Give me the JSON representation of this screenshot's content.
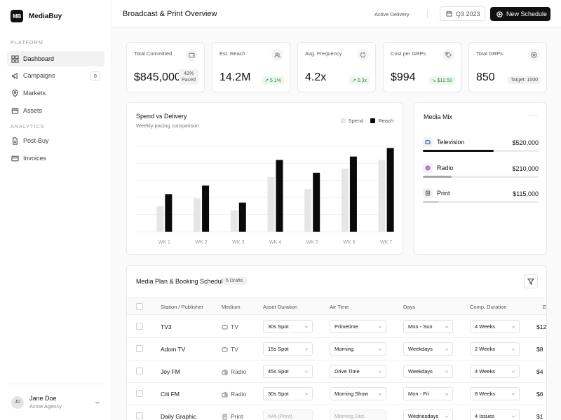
{
  "brand": {
    "logo": "MB",
    "name": "MediaBuy"
  },
  "sidebar": {
    "section_platform": "PLATFORM",
    "section_analytics": "ANALYTICS",
    "items": [
      {
        "label": "Dashboard",
        "icon": "grid-icon",
        "active": true
      },
      {
        "label": "Campaigns",
        "icon": "megaphone-icon",
        "badge": "8"
      },
      {
        "label": "Markets",
        "icon": "map-pin-icon"
      },
      {
        "label": "Assets",
        "icon": "film-icon"
      },
      {
        "label": "Post-Buy",
        "icon": "document-icon"
      },
      {
        "label": "Invoices",
        "icon": "credit-card-icon"
      }
    ],
    "user": {
      "initials": "JD",
      "name": "Jane Doe",
      "org": "Acme Agency"
    }
  },
  "header": {
    "title": "Broadcast & Print Overview",
    "status": "Active Delivery",
    "period": "Q3 2023",
    "new_button": "New Schedule"
  },
  "kpis": [
    {
      "label": "Total Committed",
      "value": "$845,000",
      "badge_line1": "42%",
      "badge_line2": "Paced",
      "icon": "wallet-icon"
    },
    {
      "label": "Est. Reach",
      "value": "14.2M",
      "badge": "↗ 5.1%",
      "icon": "users-icon"
    },
    {
      "label": "Avg. Frequency",
      "value": "4.2x",
      "badge": "↗ 0.3x",
      "icon": "repeat-icon"
    },
    {
      "label": "Cost per GRPs",
      "value": "$994",
      "badge": "↘ $12.50",
      "icon": "tag-icon"
    },
    {
      "label": "Total GRPs",
      "value": "850",
      "badge": "Target: 1000",
      "icon": "target-icon"
    }
  ],
  "chart_card": {
    "title": "Spend vs Delivery",
    "subtitle": "Weekly pacing comparison"
  },
  "chart_data": {
    "type": "bar",
    "categories": [
      "WK 1",
      "WK 2",
      "WK 3",
      "WK 4",
      "WK 5",
      "WK 6",
      "WK 7"
    ],
    "series": [
      {
        "name": "Spend",
        "values": [
          30,
          39,
          25,
          64,
          50,
          74,
          84
        ],
        "color": "#e6e6e6"
      },
      {
        "name": "Reach",
        "values": [
          44,
          54,
          34,
          84,
          69,
          88,
          98
        ],
        "color": "#0a0a0a"
      }
    ],
    "ylim": [
      0,
      100
    ],
    "grid": true,
    "legend": "top-right"
  },
  "media_mix": {
    "title": "Media Mix",
    "items": [
      {
        "name": "Television",
        "value": "$520,000",
        "share": 0.61,
        "color": "#111111",
        "icon": "tv-icon",
        "icon_color": "#3b6fd8"
      },
      {
        "name": "Radio",
        "value": "$210,000",
        "share": 0.25,
        "color": "#a8a8a8",
        "icon": "radio-icon",
        "icon_color": "#a45bd0"
      },
      {
        "name": "Print",
        "value": "$115,000",
        "share": 0.14,
        "color": "#d0d0d0",
        "icon": "newspaper-icon",
        "icon_color": "#777777"
      }
    ]
  },
  "table": {
    "title": "Media Plan & Booking Schedule",
    "drafts": "5 Drafts",
    "columns": [
      "Station / Publisher",
      "Medium",
      "Asset Duration",
      "Air Time",
      "Days",
      "Comp. Duration",
      "E"
    ],
    "rows": [
      {
        "station": "TV3",
        "medium": "TV",
        "asset": "30s Spot",
        "air": "Primetime",
        "days": "Mon - Sun",
        "comp": "4 Weeks",
        "cost": "$12"
      },
      {
        "station": "Adom TV",
        "medium": "TV",
        "asset": "15s Spot",
        "air": "Morning",
        "days": "Weekdays",
        "comp": "2 Weeks",
        "cost": "$8"
      },
      {
        "station": "Joy FM",
        "medium": "Radio",
        "asset": "45s Spot",
        "air": "Drive Time",
        "days": "Weekdays",
        "comp": "4 Weeks",
        "cost": "$4"
      },
      {
        "station": "Citi FM",
        "medium": "Radio",
        "asset": "30s Spot",
        "air": "Morning Show",
        "days": "Mon - Fri",
        "comp": "8 Weeks",
        "cost": "$6"
      },
      {
        "station": "Daily Graphic",
        "medium": "Print",
        "asset": "N/A (Print)",
        "air": "Morning Dist.",
        "days": "Wednesdays",
        "comp": "4 Issues",
        "cost": "$1",
        "disabled": true
      }
    ]
  }
}
